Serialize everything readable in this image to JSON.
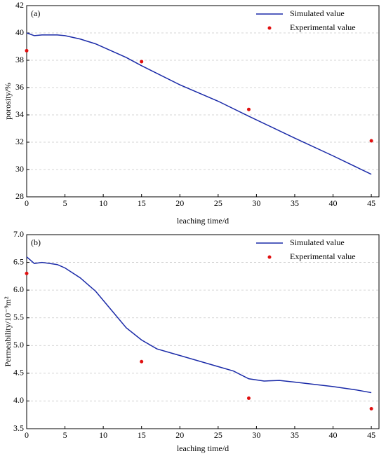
{
  "chart_data": [
    {
      "type": "line",
      "label": "(a)",
      "xlabel": "leaching time/d",
      "ylabel": "porosity/%",
      "xlim": [
        0,
        46
      ],
      "xticks": [
        0,
        5,
        10,
        15,
        20,
        25,
        30,
        35,
        40,
        45
      ],
      "ylim": [
        28,
        42
      ],
      "yticks": [
        28,
        30,
        32,
        34,
        36,
        38,
        40,
        42
      ],
      "grid": true,
      "legend": "top-right",
      "series": [
        {
          "name": "Simulated value",
          "color": "#1a2aa8",
          "mark": "line",
          "x": [
            0,
            1,
            2,
            4,
            5,
            7,
            9,
            11,
            13,
            15,
            20,
            25,
            29,
            35,
            40,
            45
          ],
          "values": [
            40.0,
            39.8,
            39.85,
            39.85,
            39.8,
            39.55,
            39.2,
            38.7,
            38.2,
            37.6,
            36.2,
            35.0,
            33.9,
            32.3,
            31.0,
            29.65
          ]
        },
        {
          "name": "Experimental value",
          "color": "#e01010",
          "mark": "point",
          "x": [
            0,
            15,
            29,
            45
          ],
          "values": [
            38.7,
            37.9,
            34.4,
            32.1
          ]
        }
      ]
    },
    {
      "type": "line",
      "label": "(b)",
      "xlabel": "leaching time/d",
      "ylabel": "Permeability/10⁻⁹m²",
      "xlim": [
        0,
        46
      ],
      "xticks": [
        0,
        5,
        10,
        15,
        20,
        25,
        30,
        35,
        40,
        45
      ],
      "ylim": [
        3.5,
        7.0
      ],
      "yticks": [
        3.5,
        {
          "value": 4,
          "label": "4.0"
        },
        4.5,
        {
          "value": 5,
          "label": "5.0"
        },
        5.5,
        {
          "value": 6,
          "label": "6.0"
        },
        6.5,
        {
          "value": 7,
          "label": "7.0"
        }
      ],
      "grid": true,
      "legend": "top-right",
      "series": [
        {
          "name": "Simulated value",
          "color": "#1a2aa8",
          "mark": "line",
          "x": [
            0,
            1,
            2,
            3,
            4,
            5,
            7,
            9,
            11,
            13,
            15,
            17,
            20,
            25,
            27,
            29,
            31,
            33,
            35,
            40,
            43,
            45
          ],
          "values": [
            6.6,
            6.48,
            6.5,
            6.48,
            6.46,
            6.4,
            6.22,
            5.98,
            5.65,
            5.32,
            5.1,
            4.94,
            4.82,
            4.62,
            4.54,
            4.4,
            4.36,
            4.37,
            4.34,
            4.26,
            4.2,
            4.15
          ]
        },
        {
          "name": "Experimental value",
          "color": "#e01010",
          "mark": "point",
          "x": [
            0,
            15,
            29,
            45
          ],
          "values": [
            6.3,
            4.71,
            4.05,
            3.86
          ]
        }
      ]
    }
  ]
}
